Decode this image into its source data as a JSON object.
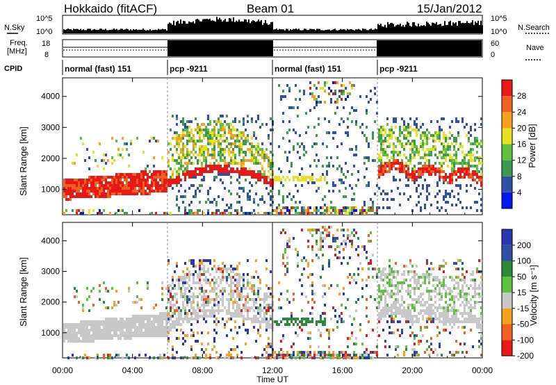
{
  "header": {
    "station": "Hokkaido (fitACF)",
    "beam": "Beam 01",
    "date": "15/Jan/2012"
  },
  "strips": {
    "nsky_label": "N.Sky",
    "nsky_ticks": [
      "10^5",
      "10^0"
    ],
    "nsearch_label": "N.Search",
    "nsearch_ticks": [
      "10^5",
      "10^0"
    ],
    "freq_label_line1": "Freq.",
    "freq_label_line2": "[MHz]",
    "freq_ticks": [
      "18",
      "8"
    ],
    "nave_label": "Nave",
    "nave_ticks": [
      "60",
      "0"
    ],
    "cpid_label": "CPID"
  },
  "cpid_segments": [
    {
      "label": "normal (fast) 151",
      "start_hour": 0,
      "end_hour": 6
    },
    {
      "label": "pcp -9211",
      "start_hour": 6,
      "end_hour": 12
    },
    {
      "label": "normal (fast) 151",
      "start_hour": 12,
      "end_hour": 18
    },
    {
      "label": "pcp -9211",
      "start_hour": 18,
      "end_hour": 24
    }
  ],
  "x_axis": {
    "label": "Time UT",
    "tick_labels": [
      "00:00",
      "04:00",
      "08:00",
      "12:00",
      "16:00",
      "20:00",
      "00:00"
    ],
    "range_hours": [
      0,
      24
    ]
  },
  "power_panel": {
    "ylabel": "Slant Range [km]",
    "yticks": [
      "1000",
      "2000",
      "3000",
      "4000"
    ],
    "colorbar_label": "Power [dB]",
    "colorbar_ticks": [
      "4",
      "8",
      "12",
      "16",
      "20",
      "24",
      "28"
    ]
  },
  "velocity_panel": {
    "ylabel": "Slant Range [km]",
    "yticks": [
      "1000",
      "2000",
      "3000",
      "4000"
    ],
    "colorbar_label": "Velocity [m s⁻¹]",
    "colorbar_ticks": [
      "200",
      "100",
      "50",
      "15",
      "-15",
      "-50",
      "-100",
      "-200"
    ]
  },
  "chart_data": [
    {
      "type": "heatmap",
      "title": "Hokkaido (fitACF) Beam 01 15/Jan/2012",
      "quantity": "Power",
      "unit": "dB",
      "xlabel": "Time UT",
      "ylabel": "Slant Range [km]",
      "xlim_hours": [
        0,
        24
      ],
      "ylim": [
        180,
        4600
      ],
      "color_range": [
        0,
        32
      ],
      "color_scale": [
        "#0018f0",
        "#3050a8",
        "#3a9a50",
        "#60c040",
        "#e8e020",
        "#f8a020",
        "#f06020",
        "#e81818"
      ],
      "features": [
        {
          "time_hours": [
            0,
            6
          ],
          "range_km": [
            700,
            1600
          ],
          "power_db": 26
        },
        {
          "time_hours": [
            6,
            11
          ],
          "range_km": [
            1300,
            3200
          ],
          "power_db": 18
        },
        {
          "time_hours": [
            12.5,
            17
          ],
          "range_km": [
            400,
            4400
          ],
          "power_db": 8
        },
        {
          "time_hours": [
            18,
            24
          ],
          "range_km": [
            900,
            3400
          ],
          "power_db": 22
        }
      ]
    },
    {
      "type": "heatmap",
      "quantity": "Velocity",
      "unit": "m s⁻¹",
      "xlabel": "Time UT",
      "ylabel": "Slant Range [km]",
      "xlim_hours": [
        0,
        24
      ],
      "ylim": [
        180,
        4600
      ],
      "color_range": [
        -250,
        250
      ],
      "color_scale": [
        "#e81818",
        "#f06020",
        "#f8a020",
        "#c8c8c8",
        "#60c040",
        "#2a8a3a",
        "#3050a8",
        "#2838b0"
      ],
      "features": [
        {
          "time_hours": [
            0,
            6
          ],
          "range_km": [
            700,
            1600
          ],
          "velocity_ms": 0
        },
        {
          "time_hours": [
            6,
            11
          ],
          "range_km": [
            1300,
            3400
          ],
          "velocity_ms": -40
        },
        {
          "time_hours": [
            12.5,
            17
          ],
          "range_km": [
            400,
            4400
          ],
          "velocity_ms": 20
        },
        {
          "time_hours": [
            18,
            24
          ],
          "range_km": [
            900,
            3400
          ],
          "velocity_ms": 30
        }
      ]
    }
  ]
}
